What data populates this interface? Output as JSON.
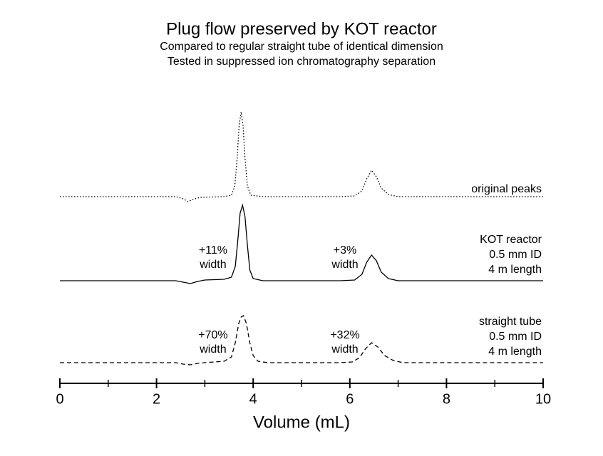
{
  "chart_data": {
    "type": "line",
    "title": "Plug flow preserved by KOT reactor",
    "subtitle": [
      "Compared to regular straight tube of identical dimension",
      "Tested in suppressed ion chromatography separation"
    ],
    "xlabel": "Volume (mL)",
    "xlim": [
      0,
      10
    ],
    "xticks": [
      0,
      2,
      4,
      6,
      8,
      10
    ],
    "minor_xticks": [
      1,
      3,
      5,
      7,
      9
    ],
    "series": [
      {
        "name": "original peaks",
        "details": [],
        "color": "#000000",
        "dash": "dotted",
        "annotations": [],
        "x": [
          0,
          2.4,
          2.55,
          2.65,
          2.75,
          2.9,
          3.4,
          3.55,
          3.62,
          3.67,
          3.71,
          3.75,
          3.79,
          3.83,
          3.88,
          3.95,
          4.2,
          5.8,
          6.1,
          6.25,
          6.35,
          6.45,
          6.55,
          6.65,
          6.8,
          7.0,
          10
        ],
        "y": [
          0,
          0,
          -3,
          -7,
          -4,
          -1,
          0,
          2,
          15,
          55,
          100,
          119,
          100,
          55,
          15,
          2,
          0,
          0,
          1,
          8,
          25,
          37,
          28,
          12,
          3,
          0,
          0
        ]
      },
      {
        "name": "KOT reactor",
        "details": [
          "0.5 mm ID",
          "4 m length"
        ],
        "color": "#000000",
        "dash": "solid",
        "annotations": [
          [
            "+11%",
            "width"
          ],
          [
            "+3%",
            "width"
          ]
        ],
        "x": [
          0,
          2.4,
          2.55,
          2.7,
          2.85,
          3.0,
          3.4,
          3.55,
          3.63,
          3.68,
          3.73,
          3.78,
          3.83,
          3.88,
          3.93,
          4.0,
          4.2,
          5.8,
          6.1,
          6.25,
          6.35,
          6.45,
          6.55,
          6.65,
          6.8,
          7.0,
          10
        ],
        "y": [
          0,
          0,
          -2,
          -4,
          -1,
          1,
          2,
          5,
          20,
          55,
          95,
          106,
          90,
          50,
          15,
          3,
          0,
          0,
          1,
          9,
          26,
          36,
          28,
          12,
          3,
          0,
          0
        ]
      },
      {
        "name": "straight tube",
        "details": [
          "0.5 mm ID",
          "4 m length"
        ],
        "color": "#000000",
        "dash": "dashed",
        "annotations": [
          [
            "+70%",
            "width"
          ],
          [
            "+32%",
            "width"
          ]
        ],
        "x": [
          0,
          2.4,
          2.55,
          2.7,
          2.85,
          3.0,
          3.4,
          3.55,
          3.63,
          3.7,
          3.75,
          3.8,
          3.86,
          3.93,
          4.0,
          4.1,
          4.3,
          5.8,
          6.05,
          6.2,
          6.33,
          6.45,
          6.58,
          6.72,
          6.9,
          7.1,
          10
        ],
        "y": [
          0,
          0,
          -2,
          -3,
          -1,
          0,
          2,
          8,
          28,
          55,
          64,
          66,
          55,
          28,
          10,
          2,
          0,
          0,
          1,
          7,
          20,
          28,
          22,
          10,
          3,
          0,
          0
        ]
      }
    ]
  }
}
